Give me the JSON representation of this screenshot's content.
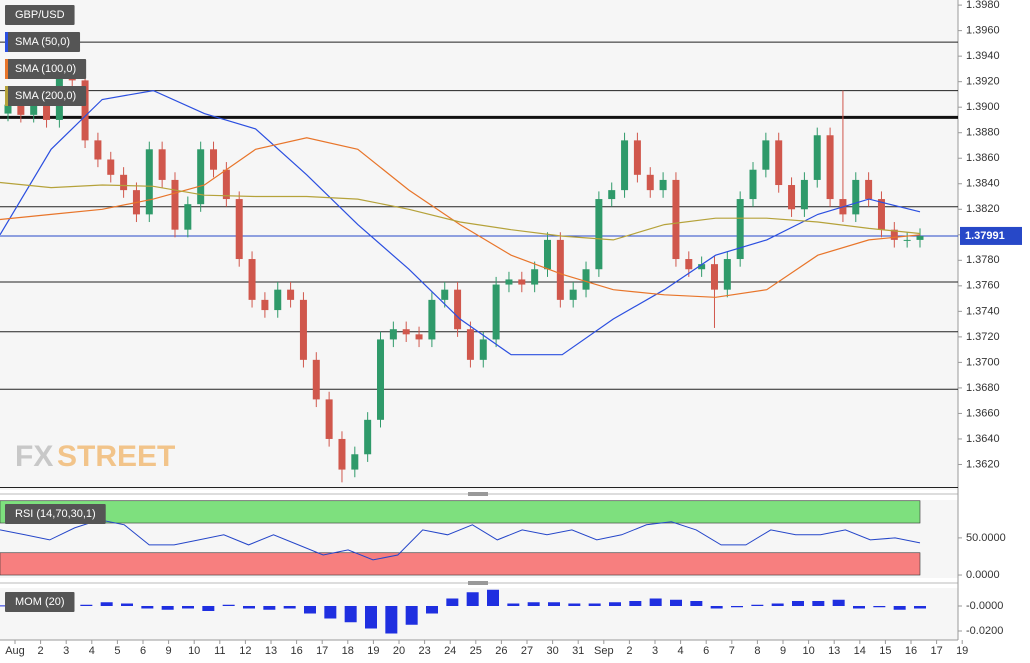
{
  "chart_data": [
    {
      "type": "candlestick",
      "title": "GBP/USD",
      "open": [
        1.3895,
        1.3902,
        1.3894,
        1.3906,
        1.389,
        1.3929,
        1.3921,
        1.3874,
        1.3859,
        1.3847,
        1.3835,
        1.3816,
        1.3867,
        1.3843,
        1.3804,
        1.3824,
        1.3867,
        1.3851,
        1.3828,
        1.3781,
        1.3749,
        1.3741,
        1.3757,
        1.3749,
        1.3702,
        1.3671,
        1.364,
        1.3616,
        1.3628,
        1.3655,
        1.3718,
        1.3726,
        1.3722,
        1.3718,
        1.3749,
        1.3757,
        1.3726,
        1.3702,
        1.3718,
        1.3761,
        1.3765,
        1.3761,
        1.3773,
        1.3796,
        1.3749,
        1.3757,
        1.3773,
        1.3828,
        1.3835,
        1.3874,
        1.3847,
        1.3835,
        1.3843,
        1.3781,
        1.3773,
        1.3777,
        1.3757,
        1.3781,
        1.3828,
        1.3851,
        1.3874,
        1.3839,
        1.382,
        1.3843,
        1.3878,
        1.3828,
        1.3816,
        1.3843,
        1.3828,
        1.3804,
        1.3796,
        1.3796
      ],
      "high": [
        1.3908,
        1.3908,
        1.3912,
        1.3912,
        1.3935,
        1.3935,
        1.3927,
        1.388,
        1.3865,
        1.3853,
        1.3841,
        1.3873,
        1.3873,
        1.3849,
        1.383,
        1.3873,
        1.3873,
        1.3857,
        1.3834,
        1.3787,
        1.3755,
        1.3763,
        1.3763,
        1.3755,
        1.3708,
        1.3677,
        1.3646,
        1.3634,
        1.3661,
        1.3724,
        1.3732,
        1.3732,
        1.3728,
        1.3755,
        1.3763,
        1.3763,
        1.3732,
        1.3724,
        1.3767,
        1.3771,
        1.3771,
        1.3779,
        1.3802,
        1.3802,
        1.3763,
        1.3779,
        1.3834,
        1.3841,
        1.388,
        1.388,
        1.3853,
        1.3849,
        1.3849,
        1.3787,
        1.3783,
        1.3783,
        1.3787,
        1.3834,
        1.3857,
        1.388,
        1.388,
        1.3845,
        1.3849,
        1.3884,
        1.3884,
        1.3913,
        1.3849,
        1.3849,
        1.3834,
        1.381,
        1.3802,
        1.3805
      ],
      "low": [
        1.3889,
        1.3888,
        1.3888,
        1.3884,
        1.3884,
        1.3915,
        1.3868,
        1.3853,
        1.3841,
        1.3829,
        1.381,
        1.381,
        1.3837,
        1.3798,
        1.3798,
        1.3818,
        1.3845,
        1.3822,
        1.3775,
        1.3743,
        1.3735,
        1.3735,
        1.3743,
        1.3696,
        1.3665,
        1.3634,
        1.3606,
        1.361,
        1.3622,
        1.3649,
        1.3712,
        1.3716,
        1.3712,
        1.3712,
        1.3743,
        1.372,
        1.3696,
        1.3696,
        1.3712,
        1.3755,
        1.3755,
        1.3755,
        1.3767,
        1.3743,
        1.3743,
        1.3751,
        1.3767,
        1.3822,
        1.3829,
        1.3841,
        1.3829,
        1.3829,
        1.3775,
        1.3767,
        1.3767,
        1.3727,
        1.3751,
        1.3775,
        1.3822,
        1.3845,
        1.3833,
        1.3814,
        1.3814,
        1.3837,
        1.3822,
        1.381,
        1.381,
        1.3822,
        1.3798,
        1.379,
        1.379,
        1.379
      ],
      "close": [
        1.3902,
        1.3894,
        1.3906,
        1.389,
        1.3929,
        1.3921,
        1.3874,
        1.3859,
        1.3847,
        1.3835,
        1.3816,
        1.3867,
        1.3843,
        1.3804,
        1.3824,
        1.3867,
        1.3851,
        1.3828,
        1.3781,
        1.3749,
        1.3741,
        1.3757,
        1.3749,
        1.3702,
        1.3671,
        1.364,
        1.3616,
        1.3628,
        1.3655,
        1.3718,
        1.3726,
        1.3722,
        1.3718,
        1.3749,
        1.3757,
        1.3726,
        1.3702,
        1.3718,
        1.3761,
        1.3765,
        1.3761,
        1.3773,
        1.3796,
        1.3749,
        1.3757,
        1.3773,
        1.3828,
        1.3835,
        1.3874,
        1.3847,
        1.3835,
        1.3843,
        1.3781,
        1.3773,
        1.3777,
        1.3757,
        1.3781,
        1.3828,
        1.3851,
        1.3874,
        1.3839,
        1.382,
        1.3843,
        1.3878,
        1.3828,
        1.3816,
        1.3843,
        1.3828,
        1.3804,
        1.3796,
        1.3796,
        1.3799
      ],
      "up_color": "#2f9a6a",
      "down_color": "#d0574c",
      "series": [
        {
          "name": "SMA (50,0)",
          "color": "#2b4fe0",
          "values": [
            1.38,
            1.3867,
            1.3906,
            1.3913,
            1.3895,
            1.3883,
            1.3847,
            1.3808,
            1.3773,
            1.3734,
            1.3706,
            1.3706,
            1.3734,
            1.3757,
            1.3784,
            1.3796,
            1.3816,
            1.3828,
            1.3818
          ]
        },
        {
          "name": "SMA (100,0)",
          "color": "#e8752a",
          "values": [
            1.3812,
            1.3816,
            1.382,
            1.3828,
            1.3839,
            1.3867,
            1.3876,
            1.3867,
            1.3835,
            1.3808,
            1.3784,
            1.3769,
            1.3757,
            1.3753,
            1.3751,
            1.3757,
            1.3784,
            1.3796,
            1.38
          ]
        },
        {
          "name": "SMA (200,0)",
          "color": "#b5a23a",
          "values": [
            1.3841,
            1.3837,
            1.3839,
            1.3838,
            1.3831,
            1.383,
            1.383,
            1.3828,
            1.382,
            1.381,
            1.3804,
            1.3799,
            1.3796,
            1.3808,
            1.3813,
            1.3813,
            1.381,
            1.3805,
            1.3801
          ]
        }
      ],
      "ylim": [
        1.36,
        1.3984
      ],
      "yticks": [
        {
          "value": 1.362,
          "label": "1.3620"
        },
        {
          "value": 1.364,
          "label": "1.3640"
        },
        {
          "value": 1.366,
          "label": "1.3660"
        },
        {
          "value": 1.368,
          "label": "1.3680"
        },
        {
          "value": 1.37,
          "label": "1.3700"
        },
        {
          "value": 1.372,
          "label": "1.3720"
        },
        {
          "value": 1.374,
          "label": "1.3740"
        },
        {
          "value": 1.376,
          "label": "1.3760"
        },
        {
          "value": 1.378,
          "label": "1.3780"
        },
        {
          "value": 1.38,
          "label": "1.3800"
        },
        {
          "value": 1.382,
          "label": "1.3820"
        },
        {
          "value": 1.384,
          "label": "1.3840"
        },
        {
          "value": 1.386,
          "label": "1.3860"
        },
        {
          "value": 1.388,
          "label": "1.3880"
        },
        {
          "value": 1.39,
          "label": "1.3900"
        },
        {
          "value": 1.392,
          "label": "1.3920"
        },
        {
          "value": 1.394,
          "label": "1.3940"
        },
        {
          "value": 1.396,
          "label": "1.3960"
        },
        {
          "value": 1.398,
          "label": "1.3980"
        }
      ],
      "levels": [
        1.3951,
        1.3913,
        1.3822,
        1.3763,
        1.3724,
        1.3679,
        1.3602
      ],
      "key_level": 1.3892,
      "last_price": 1.37991,
      "last_price_color": "#2748c8",
      "watermark": [
        "FX",
        "STREET"
      ]
    },
    {
      "type": "line",
      "title": "RSI (14,70,30,1)",
      "values": [
        60.8,
        54.1,
        47.3,
        63.5,
        74.3,
        67.6,
        40.5,
        40.5,
        47.3,
        54.1,
        40.5,
        54.1,
        40.5,
        27.0,
        33.8,
        20.3,
        27.0,
        60.8,
        54.1,
        67.6,
        47.3,
        60.8,
        54.1,
        60.8,
        47.3,
        54.1,
        67.6,
        71.6,
        60.8,
        40.5,
        40.5,
        60.8,
        54.1,
        54.1,
        60.8,
        47.3,
        50.0,
        43.2
      ],
      "color": "#2546c9",
      "bands": [
        {
          "range": [
            70,
            100
          ],
          "color": "#7ee07e"
        },
        {
          "range": [
            0,
            30
          ],
          "color": "#f77f7f"
        }
      ],
      "ylim": [
        -4,
        101
      ],
      "yticks": [
        {
          "value": 50,
          "label": "50.0000"
        },
        {
          "value": 0,
          "label": "0.0000"
        }
      ]
    },
    {
      "type": "bar",
      "title": "MOM (20)",
      "values": [
        0.0005,
        -0.001,
        0.0015,
        -0.002,
        0.001,
        0.003,
        0.002,
        -0.002,
        -0.003,
        -0.002,
        -0.004,
        0.001,
        -0.002,
        -0.003,
        -0.002,
        -0.006,
        -0.01,
        -0.013,
        -0.018,
        -0.022,
        -0.015,
        -0.006,
        0.006,
        0.011,
        0.013,
        0.002,
        0.003,
        0.003,
        0.002,
        0.002,
        0.003,
        0.004,
        0.006,
        0.005,
        0.004,
        -0.002,
        -0.001,
        0.001,
        0.002,
        0.004,
        0.004,
        0.005,
        -0.002,
        -0.001,
        -0.003,
        -0.002
      ],
      "color": "#1f2fe0",
      "ylim": [
        -0.0272,
        0.0144
      ],
      "yticks": [
        {
          "value": 0,
          "label": "-0.0000"
        },
        {
          "value": -0.02,
          "label": "-0.0200"
        }
      ]
    }
  ],
  "x_axis": {
    "categories": [
      "Aug",
      "2",
      "3",
      "4",
      "5",
      "6",
      "9",
      "10",
      "11",
      "12",
      "13",
      "16",
      "17",
      "18",
      "19",
      "20",
      "23",
      "24",
      "25",
      "26",
      "27",
      "30",
      "31",
      "Sep",
      "2",
      "3",
      "4",
      "6",
      "7",
      "8",
      "9",
      "10",
      "13",
      "14",
      "15",
      "16",
      "17",
      "19"
    ]
  }
}
